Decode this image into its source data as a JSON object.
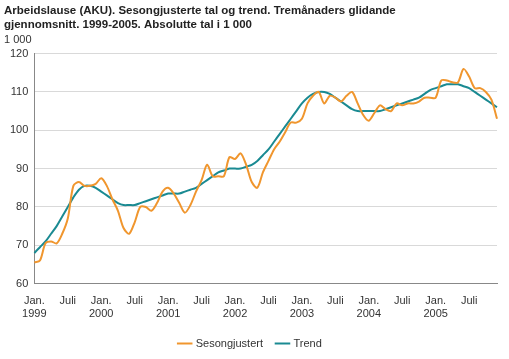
{
  "chart_data": {
    "type": "line",
    "title": [
      "Arbeidslause (AKU). Sesongjusterte tal og trend. Tremånaders glidande",
      "gjennomsnitt. 1999-2005. Absolutte tal i 1 000"
    ],
    "y_label": "1 000",
    "categories": [
      [
        "Jan.",
        "1999"
      ],
      null,
      null,
      null,
      null,
      null,
      "Juli",
      null,
      null,
      null,
      null,
      null,
      [
        "Jan.",
        "2000"
      ],
      null,
      null,
      null,
      null,
      null,
      "Juli",
      null,
      null,
      null,
      null,
      null,
      [
        "Jan.",
        "2001"
      ],
      null,
      null,
      null,
      null,
      null,
      "Juli",
      null,
      null,
      null,
      null,
      null,
      [
        "Jan.",
        "2002"
      ],
      null,
      null,
      null,
      null,
      null,
      "Juli",
      null,
      null,
      null,
      null,
      null,
      [
        "Jan.",
        "2003"
      ],
      null,
      null,
      null,
      null,
      null,
      "Juli",
      null,
      null,
      null,
      null,
      null,
      [
        "Jan.",
        "2004"
      ],
      null,
      null,
      null,
      null,
      null,
      "Juli",
      null,
      null,
      null,
      null,
      null,
      [
        "Jan.",
        "2005"
      ],
      null,
      null,
      null,
      null,
      null,
      "Juli",
      null,
      null,
      null,
      null,
      null
    ],
    "series": [
      {
        "name": "Sesongjustert",
        "color": "#f0962e",
        "values": [
          65.5,
          66,
          70.5,
          71,
          70.5,
          73,
          77,
          85.5,
          86.5,
          85.5,
          85.5,
          86,
          87.5,
          85.5,
          82,
          79,
          74.5,
          73,
          76,
          80,
          80,
          79,
          81,
          84,
          85,
          83.5,
          81,
          78.5,
          80.5,
          84,
          87,
          91,
          88,
          88,
          88,
          93,
          92.5,
          94,
          91,
          86.5,
          85,
          89,
          92,
          95,
          97,
          99.5,
          102,
          102,
          103,
          107,
          109,
          110,
          107,
          109,
          108.5,
          107.5,
          109,
          110,
          107,
          104,
          102.5,
          104.5,
          106.5,
          105.5,
          105,
          107,
          106.5,
          107,
          107,
          107.5,
          108.5,
          108.5,
          108.5,
          113,
          113,
          112.5,
          112.5,
          116,
          114,
          111,
          111,
          110,
          108,
          103
        ]
      },
      {
        "name": "Trend",
        "color": "#1a8a92",
        "values": [
          68,
          69.5,
          71,
          73,
          75,
          77.5,
          80,
          82.5,
          84.5,
          85.5,
          85.5,
          85,
          84,
          83,
          82,
          81,
          80.5,
          80.5,
          80.5,
          81,
          81.5,
          82,
          82.5,
          83,
          83.5,
          83.5,
          83.5,
          84,
          84.5,
          85,
          86,
          87,
          88,
          89,
          89.5,
          90,
          90,
          90,
          90.5,
          91,
          92,
          93.5,
          95,
          97,
          99,
          101,
          103,
          105,
          107,
          108.5,
          109.5,
          110,
          110,
          109.5,
          108.5,
          107.5,
          106.5,
          105.5,
          105,
          105,
          105,
          105,
          105,
          105.5,
          106,
          106.5,
          107,
          107.5,
          108,
          108.5,
          109.5,
          110.5,
          111,
          111.5,
          112,
          112,
          112,
          111.5,
          111,
          110,
          109,
          108,
          107,
          106
        ]
      }
    ],
    "ylim": [
      60,
      120
    ],
    "yticks": [
      60,
      70,
      80,
      90,
      100,
      110,
      120
    ],
    "grid": true,
    "legend": "bottom"
  }
}
